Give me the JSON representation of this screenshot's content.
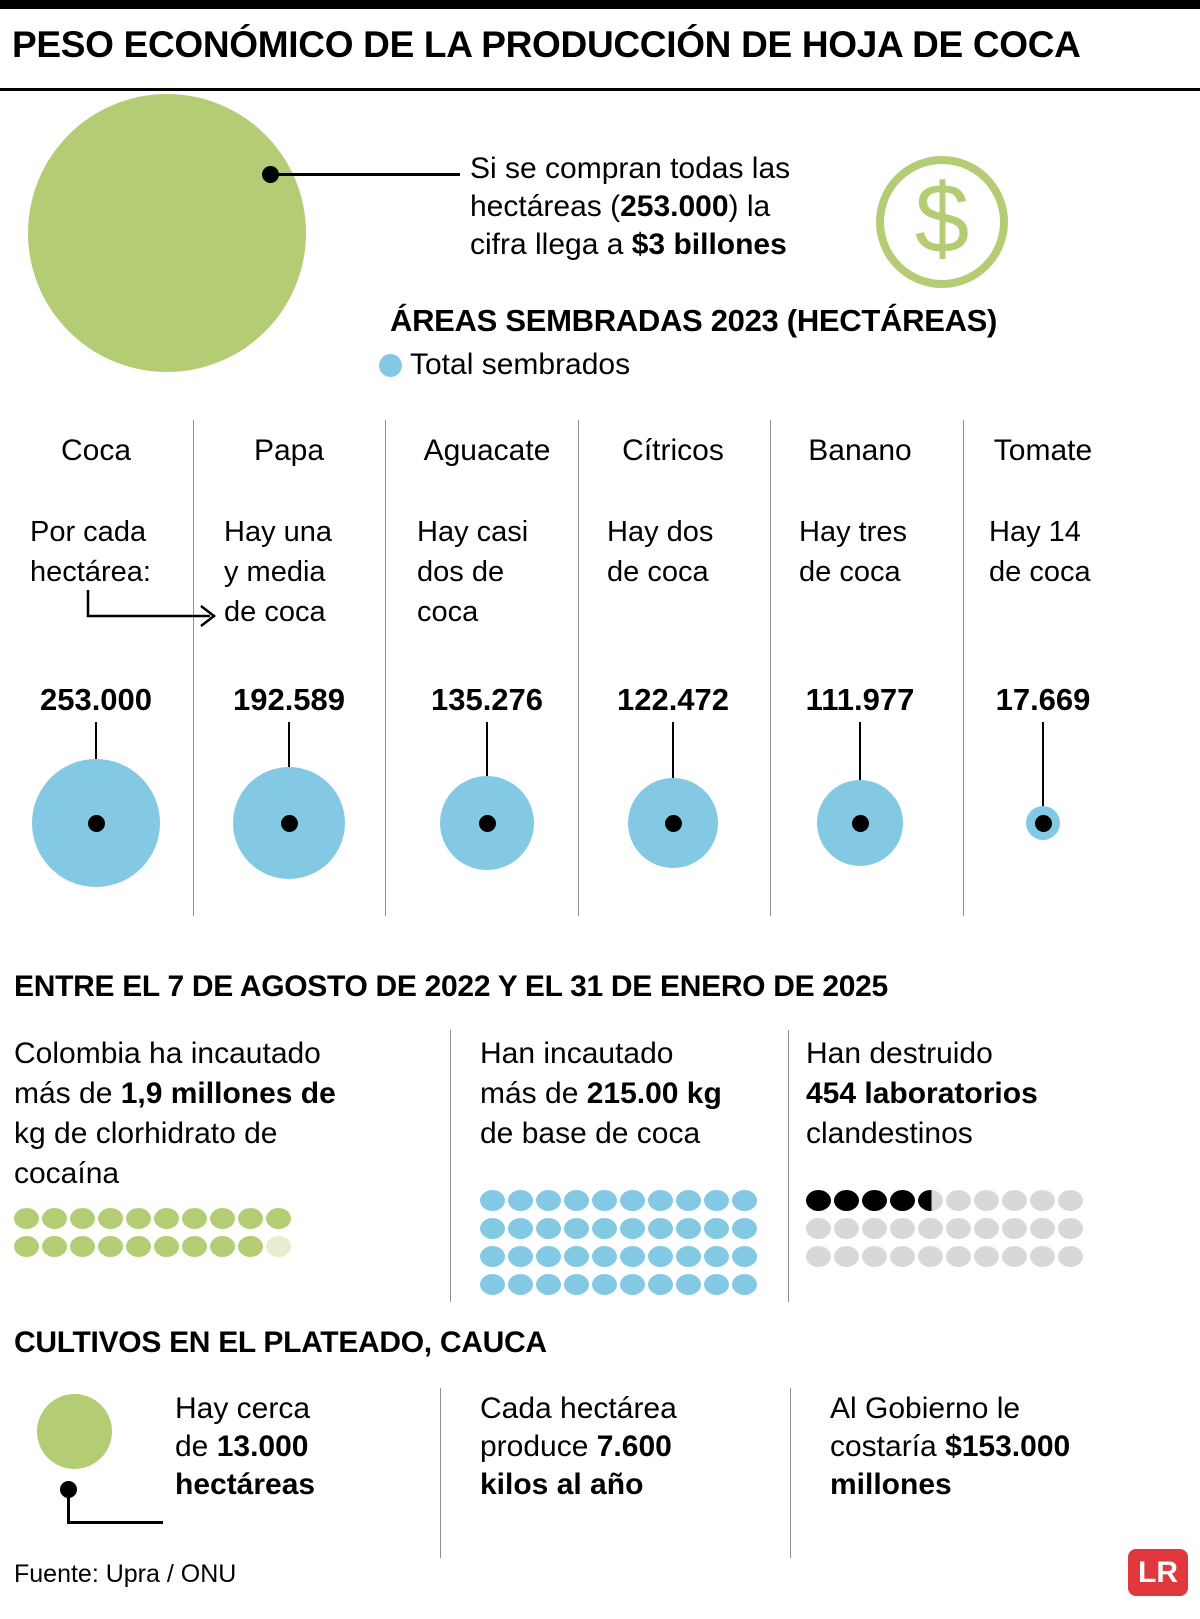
{
  "header": {
    "title": "PESO ECONÓMICO DE LA PRODUCCIÓN DE HOJA DE COCA"
  },
  "intro": {
    "dollar_glyph": "$",
    "callout_lines": [
      [
        {
          "t": "Si se compran todas las",
          "b": false
        }
      ],
      [
        {
          "t": "hectáreas (",
          "b": false
        },
        {
          "t": "253.000",
          "b": true
        },
        {
          "t": ") la",
          "b": false
        }
      ],
      [
        {
          "t": "cifra llega a ",
          "b": false
        },
        {
          "t": "$3 billones",
          "b": true
        }
      ]
    ]
  },
  "seizures": {
    "title": "ENTRE EL 7 DE AGOSTO DE 2022 Y EL 31 DE ENERO DE 2025",
    "items": [
      {
        "lines": [
          [
            {
              "t": "Colombia ha incautado",
              "b": false
            }
          ],
          [
            {
              "t": "más de ",
              "b": false
            },
            {
              "t": "1,9 millones de",
              "b": true
            }
          ],
          [
            {
              "t": "kg de clorhidrato de",
              "b": false
            }
          ],
          [
            {
              "t": "cocaína",
              "b": false
            }
          ]
        ]
      },
      {
        "lines": [
          [
            {
              "t": "Han incautado",
              "b": false
            }
          ],
          [
            {
              "t": "más de ",
              "b": false
            },
            {
              "t": "215.00 kg",
              "b": true
            }
          ],
          [
            {
              "t": "de base de coca",
              "b": false
            }
          ]
        ]
      },
      {
        "lines": [
          [
            {
              "t": "Han destruido",
              "b": false
            }
          ],
          [
            {
              "t": "454 laboratorios",
              "b": true
            }
          ],
          [
            {
              "t": "clandestinos",
              "b": false
            }
          ]
        ]
      }
    ]
  },
  "cultivos": {
    "title": "CULTIVOS EN EL PLATEADO, CAUCA",
    "items": [
      {
        "lines": [
          [
            {
              "t": "Hay cerca",
              "b": false
            }
          ],
          [
            {
              "t": "de ",
              "b": false
            },
            {
              "t": "13.000",
              "b": true
            }
          ],
          [
            {
              "t": "hectáreas",
              "b": true
            }
          ]
        ]
      },
      {
        "lines": [
          [
            {
              "t": "Cada hectárea",
              "b": false
            }
          ],
          [
            {
              "t": "produce ",
              "b": false
            },
            {
              "t": "7.600",
              "b": true
            }
          ],
          [
            {
              "t": "kilos al año",
              "b": true
            }
          ]
        ]
      },
      {
        "lines": [
          [
            {
              "t": "Al Gobierno le",
              "b": false
            }
          ],
          [
            {
              "t": "costaría ",
              "b": false
            },
            {
              "t": "$153.000",
              "b": true
            }
          ],
          [
            {
              "t": "millones",
              "b": true
            }
          ]
        ]
      }
    ]
  },
  "footer": {
    "source": "Fuente: Upra / ONU",
    "brand": "LR"
  },
  "colors": {
    "green": "#b4cd74",
    "green_pale": "#e6eecf",
    "blue": "#83c9e3",
    "gray": "#d8d8d8",
    "red": "#e0383c",
    "black": "#000000"
  },
  "chart_data": [
    {
      "type": "scatter",
      "subtype": "proportional-area-bubbles",
      "title": "ÁREAS SEMBRADAS 2023 (HECTÁREAS)",
      "legend": [
        "Total sembrados"
      ],
      "categories": [
        "Coca",
        "Papa",
        "Aguacate",
        "Cítricos",
        "Banano",
        "Tomate"
      ],
      "values": [
        253000,
        192589,
        135276,
        122472,
        111977,
        17669
      ],
      "value_labels": [
        "253.000",
        "192.589",
        "135.276",
        "122.472",
        "111.977",
        "17.669"
      ],
      "notes": [
        [
          "Por cada",
          "hectárea:"
        ],
        [
          "Hay una",
          "y media",
          "de coca"
        ],
        [
          "Hay casi",
          "dos de",
          "coca"
        ],
        [
          "Hay dos",
          "de coca"
        ],
        [
          "Hay tres",
          "de coca"
        ],
        [
          "Hay 14",
          "de coca"
        ]
      ],
      "bubble_color": "#83c9e3",
      "annotation": "Si se compran todas las hectáreas (253.000) la cifra llega a $3 billones"
    },
    {
      "type": "bar",
      "subtype": "pictogram",
      "label": "Colombia ha incautado más de 1,9 millones de kg de clorhidrato de cocaína",
      "cols": 10,
      "rows": 2,
      "filled": 19,
      "fill_color": "#b4cd74",
      "rest_color": "#e6eecf"
    },
    {
      "type": "bar",
      "subtype": "pictogram",
      "label": "Han incautado más de 215.00 kg de base de coca",
      "cols": 10,
      "rows": 4,
      "filled": 40,
      "fill_color": "#83c9e3",
      "rest_color": "#83c9e3"
    },
    {
      "type": "bar",
      "subtype": "pictogram",
      "label": "Han destruido 454 laboratorios clandestinos",
      "cols": 10,
      "rows": 3,
      "filled": 4,
      "partial": 0.54,
      "fill_color": "#000000",
      "rest_color": "#d8d8d8"
    }
  ]
}
